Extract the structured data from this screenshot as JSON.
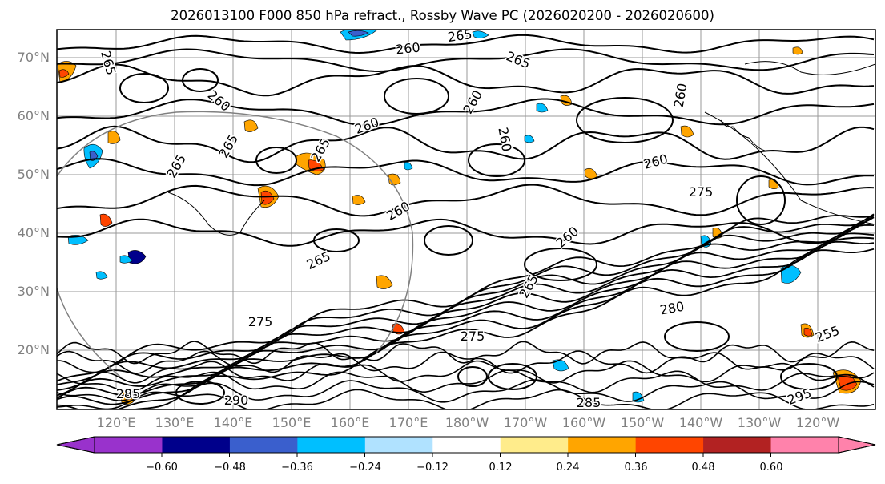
{
  "title": "2026013100 F000 850 hPa refract., Rossby Wave PC (2026020200 - 2026020600)",
  "map": {
    "latitude_labels": [
      "70°N",
      "60°N",
      "50°N",
      "40°N",
      "30°N",
      "20°N"
    ],
    "longitude_labels": [
      "120°E",
      "130°E",
      "140°E",
      "150°E",
      "160°E",
      "170°E",
      "180°W",
      "170°W",
      "160°W",
      "150°W",
      "140°W",
      "130°W",
      "120°W"
    ],
    "contour_labels": [
      "265",
      "260",
      "265",
      "265",
      "260",
      "265",
      "260",
      "260",
      "260",
      "265",
      "260",
      "260",
      "265",
      "260",
      "265",
      "275",
      "275",
      "285",
      "290",
      "285",
      "295",
      "280",
      "265",
      "260",
      "275",
      "255"
    ],
    "gridline_color": "#808080"
  },
  "colorbar": {
    "ticks": [
      "−0.60",
      "−0.48",
      "−0.36",
      "−0.24",
      "−0.12",
      "0.12",
      "0.24",
      "0.36",
      "0.48",
      "0.60"
    ],
    "colors": [
      "#9932cc",
      "#00008b",
      "#3a5fcd",
      "#00bfff",
      "#b0e2ff",
      "#ffffff",
      "#ffec8b",
      "#ffa500",
      "#ff4500",
      "#b22222",
      "#ff82ab",
      "#ff82ab"
    ]
  }
}
